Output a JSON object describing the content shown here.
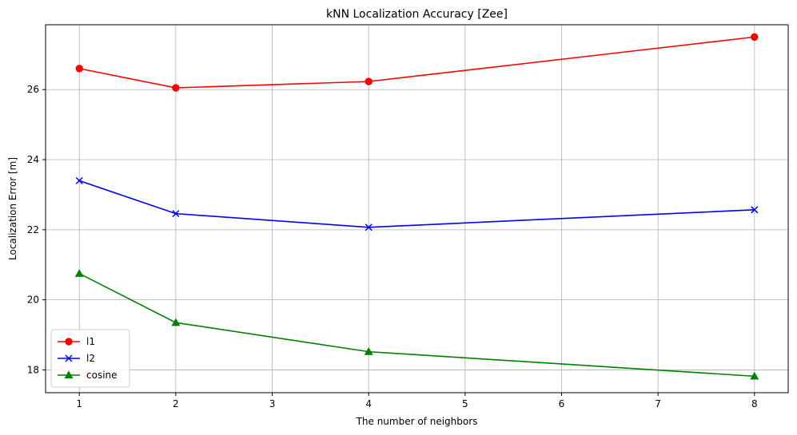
{
  "chart_data": {
    "type": "line",
    "title": "kNN Localization Accuracy [Zee]",
    "xlabel": "The number of neighbors",
    "ylabel": "Localization Error [m]",
    "x": [
      1,
      2,
      4,
      8
    ],
    "xlim": [
      0.65,
      8.35
    ],
    "ylim": [
      17.35,
      27.85
    ],
    "xticks": [
      1,
      2,
      3,
      4,
      5,
      6,
      7,
      8
    ],
    "yticks": [
      18,
      20,
      22,
      24,
      26
    ],
    "grid": true,
    "legend_position": "lower-left",
    "series": [
      {
        "name": "l1",
        "values": [
          26.6,
          26.05,
          26.23,
          27.5
        ],
        "color": "#ff0000",
        "marker": "circle"
      },
      {
        "name": "l2",
        "values": [
          23.4,
          22.46,
          22.07,
          22.57
        ],
        "color": "#0000ff",
        "marker": "x"
      },
      {
        "name": "cosine",
        "values": [
          20.75,
          19.35,
          18.52,
          17.82
        ],
        "color": "#008000",
        "marker": "triangle"
      }
    ]
  }
}
